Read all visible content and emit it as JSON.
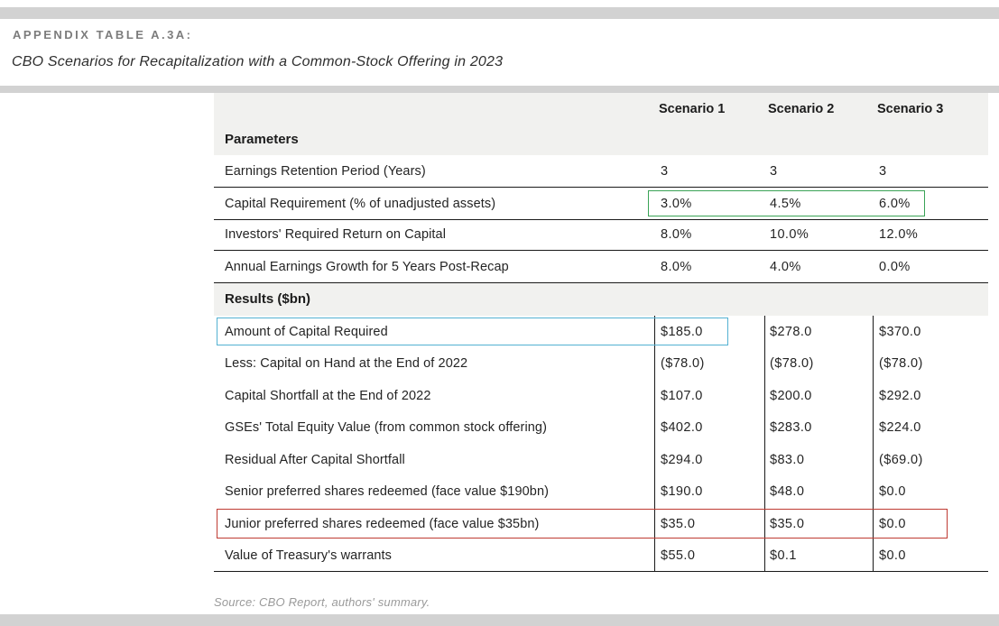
{
  "header": {
    "eyebrow": "APPENDIX TABLE A.3A:",
    "title": "CBO Scenarios for Recapitalization with a Common-Stock Offering in 2023"
  },
  "table": {
    "scenario_headers": [
      "Scenario 1",
      "Scenario 2",
      "Scenario 3"
    ],
    "sections": [
      {
        "label": "Parameters",
        "rows": [
          {
            "label": "Earnings Retention Period (Years)",
            "values": [
              "3",
              "3",
              "3"
            ],
            "highlight": "none"
          },
          {
            "label": "Capital Requirement (% of unadjusted assets)",
            "values": [
              "3.0%",
              "4.5%",
              "6.0%"
            ],
            "highlight": "green"
          },
          {
            "label": "Investors' Required Return on Capital",
            "values": [
              "8.0%",
              "10.0%",
              "12.0%"
            ],
            "highlight": "none"
          },
          {
            "label": "Annual Earnings Growth for 5 Years Post-Recap",
            "values": [
              "8.0%",
              "4.0%",
              "0.0%"
            ],
            "highlight": "none"
          }
        ]
      },
      {
        "label": "Results ($bn)",
        "rows": [
          {
            "label": "Amount of Capital Required",
            "values": [
              "$185.0",
              "$278.0",
              "$370.0"
            ],
            "highlight": "blue"
          },
          {
            "label": "Less: Capital on Hand at the End of 2022",
            "values": [
              "($78.0)",
              "($78.0)",
              "($78.0)"
            ],
            "highlight": "none"
          },
          {
            "label": "Capital Shortfall at the End of 2022",
            "values": [
              "$107.0",
              "$200.0",
              "$292.0"
            ],
            "highlight": "none"
          },
          {
            "label": "GSEs' Total Equity Value (from common stock offering)",
            "values": [
              "$402.0",
              "$283.0",
              "$224.0"
            ],
            "highlight": "none"
          },
          {
            "label": "Residual After Capital Shortfall",
            "values": [
              "$294.0",
              "$83.0",
              "($69.0)"
            ],
            "highlight": "none"
          },
          {
            "label": "Senior preferred shares redeemed (face value $190bn)",
            "values": [
              "$190.0",
              "$48.0",
              "$0.0"
            ],
            "highlight": "none"
          },
          {
            "label": "Junior preferred shares redeemed (face value $35bn)",
            "values": [
              "$35.0",
              "$35.0",
              "$0.0"
            ],
            "highlight": "red"
          },
          {
            "label": "Value of Treasury's warrants",
            "values": [
              "$55.0",
              "$0.1",
              "$0.0"
            ],
            "highlight": "none"
          }
        ]
      }
    ]
  },
  "source_note": "Source: CBO Report, authors' summary.",
  "colors": {
    "highlight_green": "#3aa356",
    "highlight_blue": "#53b1d2",
    "highlight_red": "#bf3b33",
    "divider_bar_gray": "#d2d2d2",
    "band_background": "#f1f1ef",
    "eyebrow_gray": "#7c7c7c"
  }
}
